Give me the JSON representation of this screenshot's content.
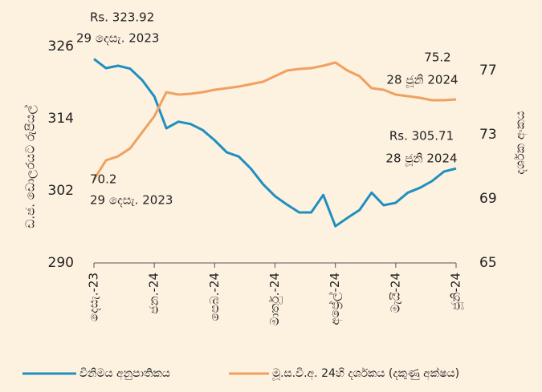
{
  "chart_data": {
    "type": "line",
    "categories": [
      "දෙසැ.-23",
      null,
      null,
      null,
      null,
      "ජන.-24",
      null,
      null,
      null,
      null,
      "පෙබ.-24",
      null,
      null,
      null,
      null,
      "මාර්තු.-24",
      null,
      null,
      null,
      null,
      "අප්‍රේල්-24",
      null,
      null,
      null,
      null,
      "මැයි-24",
      null,
      null,
      null,
      null,
      "ජූනි-24"
    ],
    "series": [
      {
        "name": "විනිමය අනුපාතිකය",
        "color": "#1f8fc0",
        "values": [
          323.92,
          322.4,
          322.8,
          322.3,
          320.4,
          317.7,
          312.4,
          313.5,
          313.1,
          312.1,
          310.4,
          308.4,
          307.7,
          305.7,
          303.1,
          301.1,
          299.7,
          298.4,
          298.4,
          301.3,
          296.1,
          297.5,
          298.8,
          301.7,
          299.6,
          300,
          301.7,
          302.5,
          303.6,
          305.2,
          305.71
        ]
      },
      {
        "name": "මූ.ස.වි.අ. 24හි දර්ශකය (දකුණු අක්ෂය)",
        "color": "#f0a060",
        "axis": "y2",
        "values": [
          70.2,
          71.4,
          71.65,
          72.15,
          73.15,
          74.15,
          75.65,
          75.5,
          75.55,
          75.65,
          75.8,
          75.9,
          76,
          76.15,
          76.3,
          76.65,
          77,
          77.1,
          77.15,
          77.3,
          77.5,
          77,
          76.65,
          75.9,
          75.8,
          75.5,
          75.4,
          75.3,
          75.15,
          75.15,
          75.2
        ]
      }
    ],
    "ylabel": "ඩ.ජ. ඩොලරයට රුපියල්",
    "y2label": "දර්ශක අංකය",
    "ylim": [
      290,
      330
    ],
    "yticks": [
      290,
      302,
      314,
      326
    ],
    "y2lim": [
      65,
      80
    ],
    "y2ticks": [
      65,
      69,
      73,
      77
    ],
    "annotations": [
      "Rs. 323.92",
      "29 දෙසැ. 2023",
      "70.2",
      "29 දෙසැ. 2023",
      "75.2",
      "28 ජූනි 2024",
      "Rs. 305.71",
      "28 ජූනි 2024"
    ],
    "legend": "bottom"
  }
}
